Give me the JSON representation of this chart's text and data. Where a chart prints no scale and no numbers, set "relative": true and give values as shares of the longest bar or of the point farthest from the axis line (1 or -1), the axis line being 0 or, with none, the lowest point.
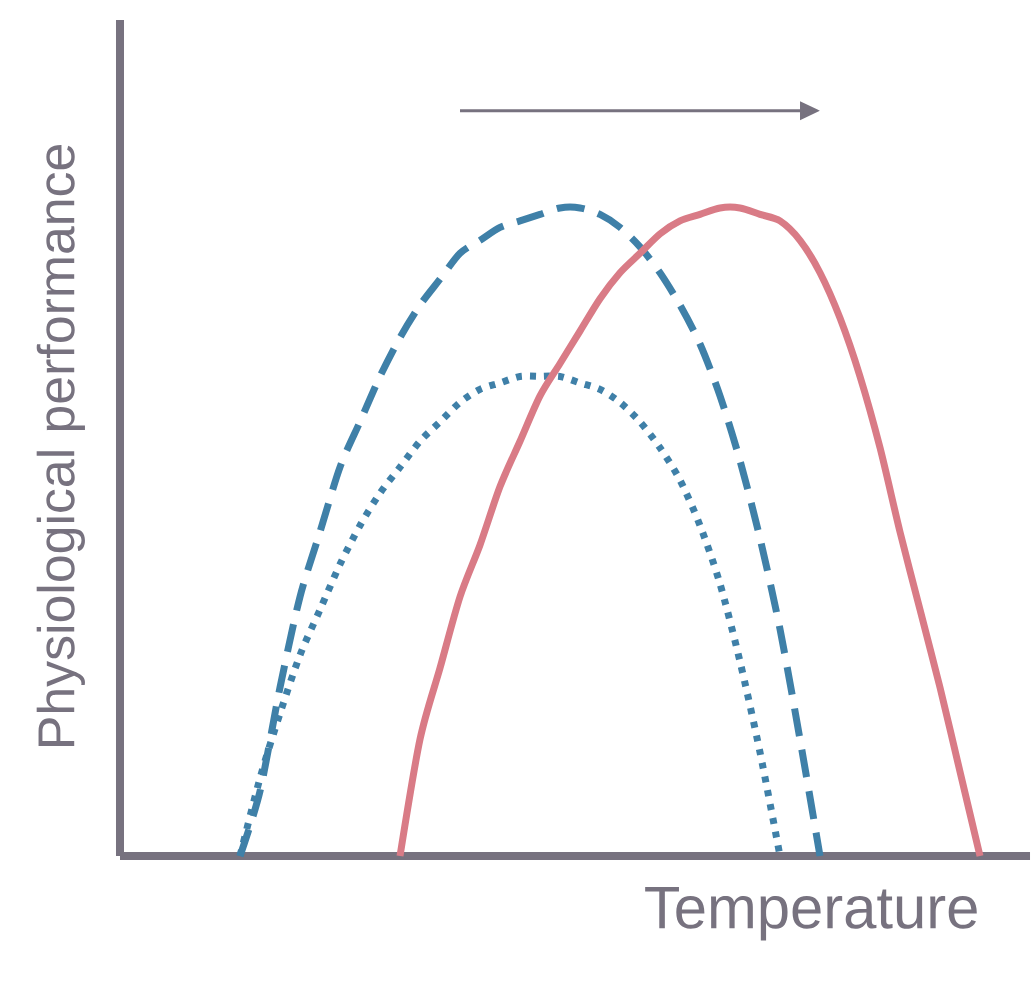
{
  "chart_data": {
    "type": "line",
    "relative": true,
    "xlabel": "Temperature",
    "ylabel": "Physiological performance",
    "categories": [
      null,
      null,
      null,
      null,
      null,
      null,
      null,
      null,
      null,
      null,
      null,
      null,
      null,
      null,
      null,
      null,
      null,
      null,
      null,
      null,
      null,
      null,
      null,
      null,
      null,
      null,
      null,
      null,
      null,
      null,
      null,
      null,
      null,
      null,
      null,
      null,
      null,
      null,
      null,
      null,
      null,
      null,
      null,
      null,
      null,
      null
    ],
    "series": [
      {
        "color": "#3f80a8",
        "line_style": "dashed",
        "values": [
          null,
          null,
          null,
          null,
          null,
          null,
          0,
          0.1,
          0.26,
          0.4,
          0.5,
          0.6,
          0.67,
          0.74,
          0.8,
          0.85,
          0.89,
          0.93,
          0.95,
          0.97,
          0.98,
          0.99,
          1.0,
          1.0,
          0.99,
          0.97,
          0.94,
          0.9,
          0.85,
          0.79,
          0.71,
          0.61,
          0.49,
          0.35,
          0.18,
          0,
          null,
          null,
          null,
          null,
          null,
          null,
          null,
          null,
          null,
          null
        ]
      },
      {
        "color": "#3f80a8",
        "line_style": "dotted",
        "values": [
          null,
          null,
          null,
          null,
          null,
          null,
          0,
          0.12,
          0.22,
          0.31,
          0.38,
          0.45,
          0.51,
          0.56,
          0.6,
          0.64,
          0.67,
          0.7,
          0.72,
          0.73,
          0.74,
          0.74,
          0.74,
          0.73,
          0.72,
          0.7,
          0.67,
          0.63,
          0.58,
          0.51,
          0.42,
          0.3,
          0.16,
          0,
          null,
          null,
          null,
          null,
          null,
          null,
          null,
          null,
          null,
          null,
          null,
          null
        ]
      },
      {
        "color": "#d97b86",
        "line_style": "solid",
        "values": [
          null,
          null,
          null,
          null,
          null,
          null,
          null,
          null,
          null,
          null,
          null,
          null,
          null,
          null,
          0,
          0.18,
          0.29,
          0.4,
          0.48,
          0.57,
          0.64,
          0.71,
          0.76,
          0.81,
          0.86,
          0.9,
          0.93,
          0.96,
          0.98,
          0.99,
          1.0,
          1.0,
          0.99,
          0.98,
          0.95,
          0.9,
          0.83,
          0.74,
          0.63,
          0.5,
          0.38,
          0.26,
          0.13,
          0,
          null,
          null
        ]
      }
    ]
  }
}
